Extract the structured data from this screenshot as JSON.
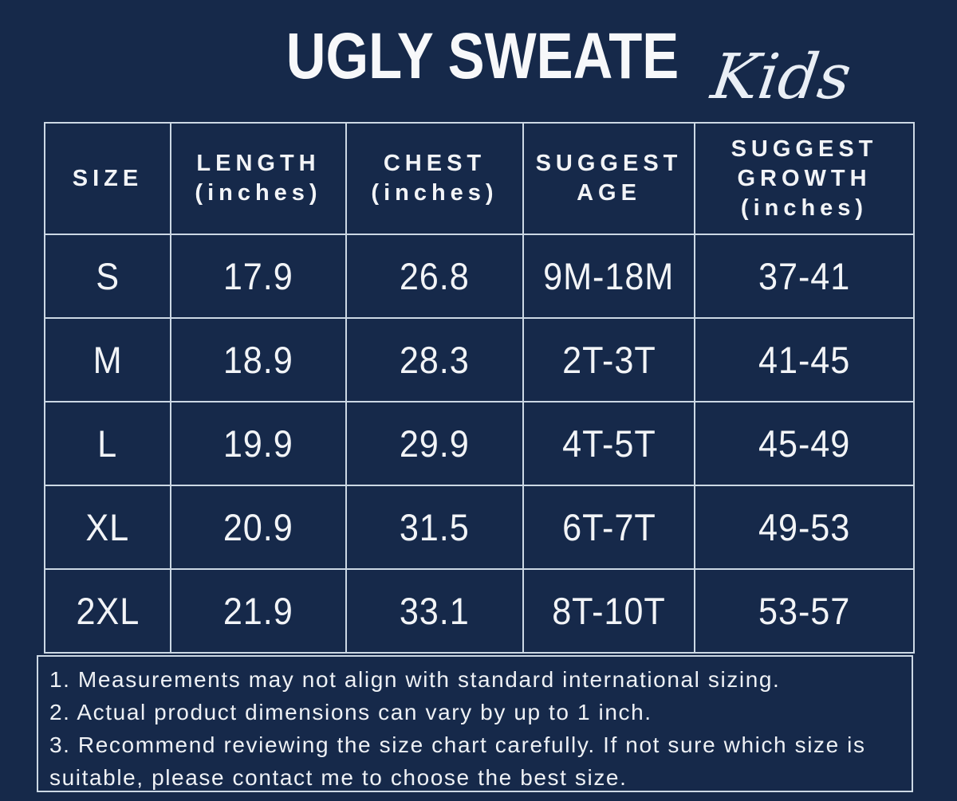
{
  "title": {
    "main": "UGLY SWEATE",
    "script": "Kids"
  },
  "chart_data": {
    "type": "table",
    "title": "UGLY SWEATE",
    "subtitle": "Kids",
    "columns": [
      "SIZE",
      "LENGTH (inches)",
      "CHEST (inches)",
      "SUGGEST AGE",
      "SUGGEST GROWTH (inches)"
    ],
    "rows": [
      [
        "S",
        "17.9",
        "26.8",
        "9M-18M",
        "37-41"
      ],
      [
        "M",
        "18.9",
        "28.3",
        "2T-3T",
        "41-45"
      ],
      [
        "L",
        "19.9",
        "29.9",
        "4T-5T",
        "45-49"
      ],
      [
        "XL",
        "20.9",
        "31.5",
        "6T-7T",
        "49-53"
      ],
      [
        "2XL",
        "21.9",
        "33.1",
        "8T-10T",
        "53-57"
      ]
    ]
  },
  "header_lines": [
    [
      "SIZE"
    ],
    [
      "LENGTH",
      "(inches)"
    ],
    [
      "CHEST",
      "(inches)"
    ],
    [
      "SUGGEST",
      "AGE"
    ],
    [
      "SUGGEST",
      "GROWTH",
      "(inches)"
    ]
  ],
  "notes": [
    "1. Measurements may not align with standard international sizing.",
    "2. Actual product dimensions can vary by up to 1 inch.",
    "3. Recommend reviewing the size chart carefully. If not sure which size is suitable, please contact me to choose the best size."
  ],
  "colors": {
    "background": "#16294a",
    "border": "#ccd8e4",
    "text": "#f2f4f7"
  }
}
